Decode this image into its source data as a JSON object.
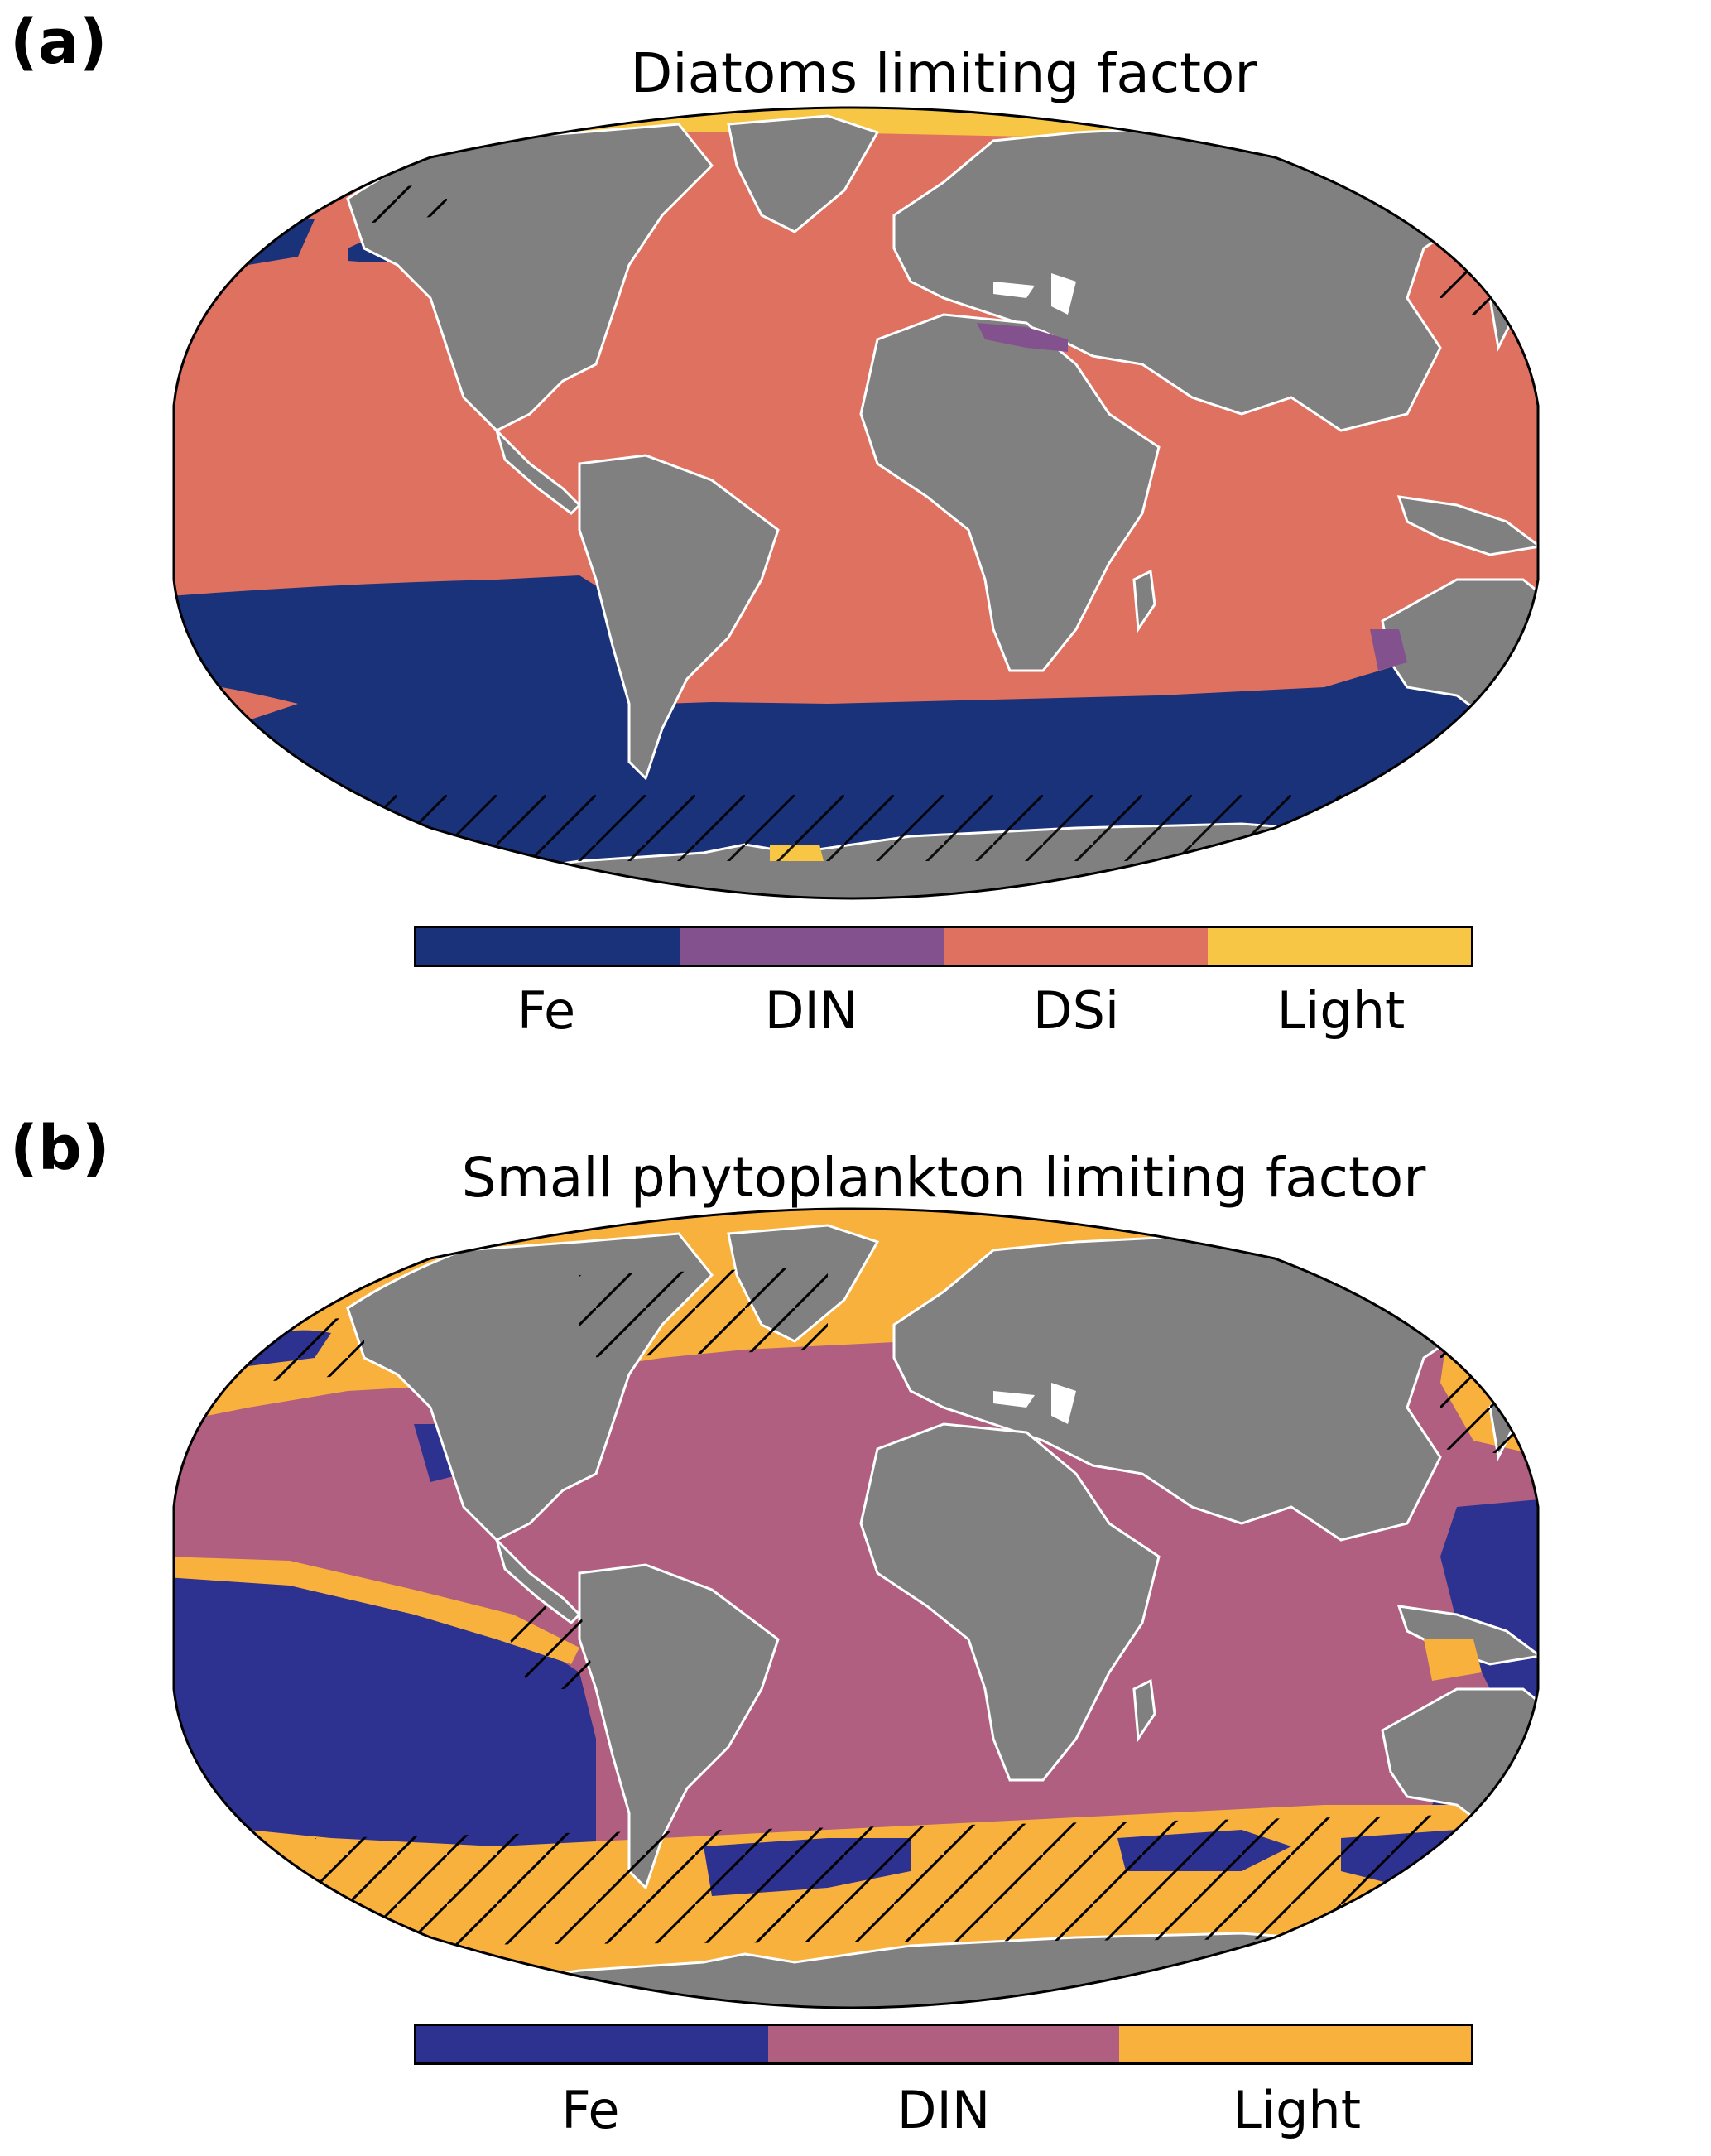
{
  "panel_a": {
    "letter": "(a)",
    "title": "Diatoms limiting factor",
    "legend": [
      {
        "label": "Fe",
        "color": "#1a327a"
      },
      {
        "label": "DIN",
        "color": "#83528e"
      },
      {
        "label": "DSi",
        "color": "#df7161"
      },
      {
        "label": "Light",
        "color": "#f6c644"
      }
    ]
  },
  "panel_b": {
    "letter": "(b)",
    "title": "Small phytoplankton limiting factor",
    "legend": [
      {
        "label": "Fe",
        "color": "#2d3190"
      },
      {
        "label": "DIN",
        "color": "#b05f80"
      },
      {
        "label": "Light",
        "color": "#f9b13d"
      }
    ]
  },
  "map_style": {
    "land": "#808080",
    "ice": "#ffffff",
    "outline": "#000000",
    "projection": "Robinson",
    "hatching": "diagonal black lines mark regions of limitation change"
  }
}
